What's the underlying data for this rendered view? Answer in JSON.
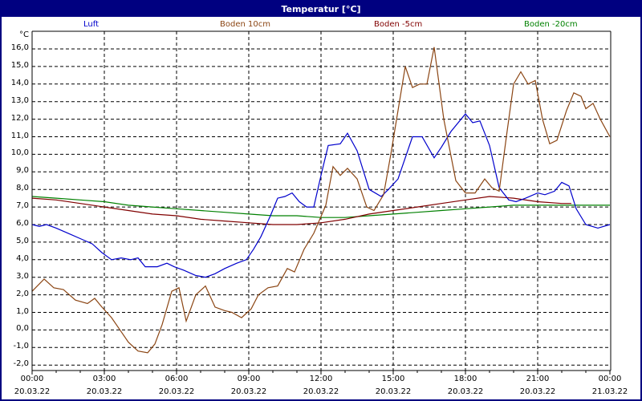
{
  "window": {
    "title": "Temperatur [°C]"
  },
  "chart_data": {
    "type": "line",
    "title": "Temperatur [°C]",
    "xlabel": "",
    "ylabel": "°C",
    "ylim": [
      -2.0,
      16.0
    ],
    "xlim_hours": [
      0,
      24
    ],
    "grid": true,
    "legend_position": "top",
    "y_ticks": [
      "16,0",
      "15,0",
      "14,0",
      "13,0",
      "12,0",
      "11,0",
      "10,0",
      "9,0",
      "8,0",
      "7,0",
      "6,0",
      "5,0",
      "4,0",
      "3,0",
      "2,0",
      "1,0",
      "0,0",
      "-1,0",
      "-2,0"
    ],
    "x_ticks": [
      {
        "time": "00:00",
        "date": "20.03.22"
      },
      {
        "time": "03:00",
        "date": "20.03.22"
      },
      {
        "time": "06:00",
        "date": "20.03.22"
      },
      {
        "time": "09:00",
        "date": "20.03.22"
      },
      {
        "time": "12:00",
        "date": "20.03.22"
      },
      {
        "time": "15:00",
        "date": "20.03.22"
      },
      {
        "time": "18:00",
        "date": "20.03.22"
      },
      {
        "time": "21:00",
        "date": "20.03.22"
      },
      {
        "time": "00:00",
        "date": "21.03.22"
      }
    ],
    "series": [
      {
        "name": "Luft",
        "color": "#0000cc",
        "points": [
          [
            0,
            6.0
          ],
          [
            0.3,
            5.9
          ],
          [
            0.6,
            6.0
          ],
          [
            1.0,
            5.8
          ],
          [
            1.5,
            5.5
          ],
          [
            2.0,
            5.2
          ],
          [
            2.5,
            4.9
          ],
          [
            2.9,
            4.4
          ],
          [
            3.3,
            4.0
          ],
          [
            3.7,
            4.1
          ],
          [
            4.1,
            4.0
          ],
          [
            4.4,
            4.1
          ],
          [
            4.7,
            3.6
          ],
          [
            5.2,
            3.6
          ],
          [
            5.6,
            3.8
          ],
          [
            5.9,
            3.6
          ],
          [
            6.3,
            3.4
          ],
          [
            6.8,
            3.1
          ],
          [
            7.2,
            3.0
          ],
          [
            7.6,
            3.2
          ],
          [
            8.0,
            3.5
          ],
          [
            8.5,
            3.8
          ],
          [
            8.9,
            4.0
          ],
          [
            9.2,
            4.6
          ],
          [
            9.5,
            5.3
          ],
          [
            9.9,
            6.5
          ],
          [
            10.2,
            7.5
          ],
          [
            10.5,
            7.6
          ],
          [
            10.8,
            7.8
          ],
          [
            11.1,
            7.3
          ],
          [
            11.4,
            7.0
          ],
          [
            11.7,
            7.0
          ],
          [
            12.0,
            8.8
          ],
          [
            12.3,
            10.5
          ],
          [
            12.8,
            10.6
          ],
          [
            13.1,
            11.2
          ],
          [
            13.5,
            10.2
          ],
          [
            14.0,
            8.0
          ],
          [
            14.5,
            7.6
          ],
          [
            14.8,
            8.0
          ],
          [
            15.2,
            8.6
          ],
          [
            15.8,
            11.0
          ],
          [
            16.2,
            11.0
          ],
          [
            16.7,
            9.8
          ],
          [
            17.0,
            10.4
          ],
          [
            17.4,
            11.3
          ],
          [
            18.0,
            12.3
          ],
          [
            18.3,
            11.8
          ],
          [
            18.6,
            11.9
          ],
          [
            19.0,
            10.5
          ],
          [
            19.4,
            8.1
          ],
          [
            19.8,
            7.4
          ],
          [
            20.1,
            7.3
          ],
          [
            20.5,
            7.5
          ],
          [
            21.0,
            7.8
          ],
          [
            21.3,
            7.7
          ],
          [
            21.7,
            7.9
          ],
          [
            22.0,
            8.4
          ],
          [
            22.3,
            8.2
          ],
          [
            22.6,
            6.9
          ],
          [
            23.0,
            6.0
          ],
          [
            23.5,
            5.8
          ],
          [
            24.0,
            6.0
          ]
        ]
      },
      {
        "name": "Boden 10cm",
        "color": "#8b4513",
        "points": [
          [
            0,
            2.2
          ],
          [
            0.5,
            2.9
          ],
          [
            0.9,
            2.4
          ],
          [
            1.3,
            2.3
          ],
          [
            1.8,
            1.7
          ],
          [
            2.3,
            1.5
          ],
          [
            2.6,
            1.8
          ],
          [
            2.9,
            1.3
          ],
          [
            3.3,
            0.7
          ],
          [
            3.6,
            0.1
          ],
          [
            4.0,
            -0.7
          ],
          [
            4.4,
            -1.2
          ],
          [
            4.8,
            -1.3
          ],
          [
            5.1,
            -0.8
          ],
          [
            5.4,
            0.3
          ],
          [
            5.8,
            2.2
          ],
          [
            6.1,
            2.4
          ],
          [
            6.4,
            0.5
          ],
          [
            6.8,
            2.0
          ],
          [
            7.2,
            2.5
          ],
          [
            7.6,
            1.3
          ],
          [
            8.0,
            1.1
          ],
          [
            8.3,
            1.0
          ],
          [
            8.7,
            0.7
          ],
          [
            9.1,
            1.2
          ],
          [
            9.4,
            2.0
          ],
          [
            9.8,
            2.4
          ],
          [
            10.2,
            2.5
          ],
          [
            10.6,
            3.5
          ],
          [
            10.9,
            3.3
          ],
          [
            11.3,
            4.6
          ],
          [
            11.7,
            5.5
          ],
          [
            12.2,
            7.1
          ],
          [
            12.5,
            9.3
          ],
          [
            12.8,
            8.8
          ],
          [
            13.1,
            9.2
          ],
          [
            13.5,
            8.6
          ],
          [
            13.9,
            7.0
          ],
          [
            14.2,
            6.8
          ],
          [
            14.6,
            7.7
          ],
          [
            14.9,
            10.0
          ],
          [
            15.2,
            12.5
          ],
          [
            15.5,
            15.0
          ],
          [
            15.8,
            13.8
          ],
          [
            16.1,
            14.0
          ],
          [
            16.4,
            14.0
          ],
          [
            16.7,
            16.1
          ],
          [
            17.1,
            12.0
          ],
          [
            17.6,
            8.5
          ],
          [
            18.0,
            7.8
          ],
          [
            18.4,
            7.8
          ],
          [
            18.8,
            8.6
          ],
          [
            19.1,
            8.1
          ],
          [
            19.4,
            7.9
          ],
          [
            19.7,
            11.0
          ],
          [
            20.0,
            14.0
          ],
          [
            20.3,
            14.7
          ],
          [
            20.6,
            14.0
          ],
          [
            20.9,
            14.2
          ],
          [
            21.2,
            12.0
          ],
          [
            21.5,
            10.6
          ],
          [
            21.8,
            10.8
          ],
          [
            22.2,
            12.5
          ],
          [
            22.5,
            13.5
          ],
          [
            22.8,
            13.3
          ],
          [
            23.0,
            12.6
          ],
          [
            23.3,
            12.9
          ],
          [
            23.6,
            12.0
          ],
          [
            24.0,
            11.0
          ]
        ]
      },
      {
        "name": "Boden -5cm",
        "color": "#800000",
        "points": [
          [
            0,
            7.5
          ],
          [
            1.0,
            7.4
          ],
          [
            2.0,
            7.2
          ],
          [
            3.0,
            7.0
          ],
          [
            4.0,
            6.8
          ],
          [
            5.0,
            6.6
          ],
          [
            6.0,
            6.5
          ],
          [
            7.0,
            6.3
          ],
          [
            8.0,
            6.2
          ],
          [
            9.0,
            6.1
          ],
          [
            10.0,
            6.0
          ],
          [
            11.0,
            6.0
          ],
          [
            12.0,
            6.1
          ],
          [
            13.0,
            6.3
          ],
          [
            14.0,
            6.6
          ],
          [
            15.0,
            6.8
          ],
          [
            16.0,
            7.0
          ],
          [
            17.0,
            7.2
          ],
          [
            18.0,
            7.4
          ],
          [
            19.0,
            7.6
          ],
          [
            20.0,
            7.5
          ],
          [
            21.0,
            7.3
          ],
          [
            22.0,
            7.2
          ],
          [
            22.4,
            7.2
          ]
        ]
      },
      {
        "name": "Boden -20cm",
        "color": "#008000",
        "points": [
          [
            0,
            7.6
          ],
          [
            1.0,
            7.5
          ],
          [
            2.0,
            7.4
          ],
          [
            3.0,
            7.3
          ],
          [
            4.0,
            7.1
          ],
          [
            5.0,
            7.0
          ],
          [
            6.0,
            6.9
          ],
          [
            7.0,
            6.8
          ],
          [
            8.0,
            6.7
          ],
          [
            9.0,
            6.6
          ],
          [
            10.0,
            6.5
          ],
          [
            11.0,
            6.5
          ],
          [
            12.0,
            6.4
          ],
          [
            13.0,
            6.4
          ],
          [
            14.0,
            6.5
          ],
          [
            15.0,
            6.6
          ],
          [
            16.0,
            6.7
          ],
          [
            17.0,
            6.8
          ],
          [
            18.0,
            6.9
          ],
          [
            19.0,
            7.0
          ],
          [
            20.0,
            7.1
          ],
          [
            21.0,
            7.1
          ],
          [
            22.0,
            7.1
          ],
          [
            24.0,
            7.1
          ]
        ]
      }
    ]
  },
  "legend": [
    {
      "label": "Luft",
      "color": "#0000cc"
    },
    {
      "label": "Boden 10cm",
      "color": "#8b4513"
    },
    {
      "label": "Boden -5cm",
      "color": "#800000"
    },
    {
      "label": "Boden -20cm",
      "color": "#008000"
    }
  ]
}
